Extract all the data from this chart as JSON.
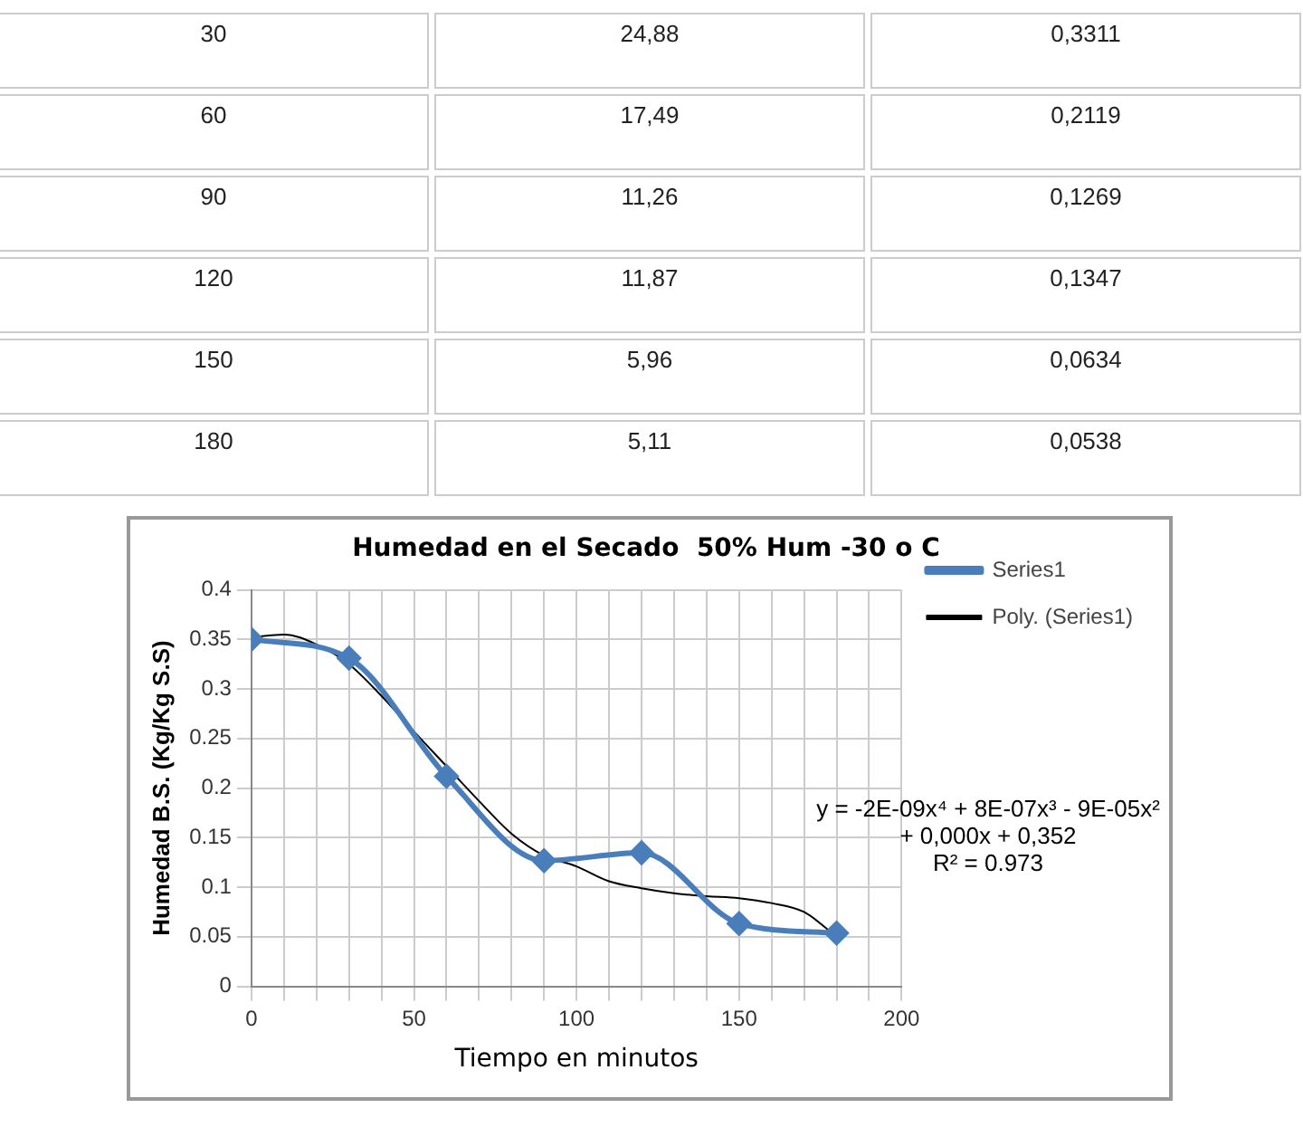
{
  "chart_data": {
    "type": "line",
    "title": "Humedad en el Secado  50% Hum -30 o C",
    "xlabel": "Tiempo en minutos",
    "ylabel": "Humedad B.S. (Kg/Kg S.S)",
    "xlim": [
      0,
      200
    ],
    "xticks": [
      0,
      {
        "value": 10,
        "label": null
      },
      {
        "value": 20,
        "label": null
      },
      {
        "value": 30,
        "label": null
      },
      {
        "value": 40,
        "label": null
      },
      50,
      {
        "value": 60,
        "label": null
      },
      {
        "value": 70,
        "label": null
      },
      {
        "value": 80,
        "label": null
      },
      {
        "value": 90,
        "label": null
      },
      100,
      {
        "value": 110,
        "label": null
      },
      {
        "value": 120,
        "label": null
      },
      {
        "value": 130,
        "label": null
      },
      {
        "value": 140,
        "label": null
      },
      150,
      {
        "value": 160,
        "label": null
      },
      {
        "value": 170,
        "label": null
      },
      {
        "value": 180,
        "label": null
      },
      {
        "value": 190,
        "label": null
      },
      200
    ],
    "ylim": [
      0,
      0.4
    ],
    "yticks": [
      0,
      0.05,
      0.1,
      0.15,
      0.2,
      0.25,
      0.3,
      0.35,
      0.4
    ],
    "grid": true,
    "legend": "right",
    "series": [
      {
        "name": "Series1",
        "color": "#4a7ebb",
        "marker": "diamond",
        "x": [
          0,
          30,
          60,
          90,
          120,
          150,
          180
        ],
        "values": [
          0.35,
          0.3311,
          0.2119,
          0.1269,
          0.1347,
          0.0634,
          0.0538
        ]
      },
      {
        "name": "Poly. (Series1)",
        "color": "#000000",
        "marker": "none",
        "x": [
          0,
          10,
          20,
          30,
          40,
          50,
          60,
          70,
          80,
          90,
          100,
          110,
          120,
          130,
          140,
          150,
          160,
          170,
          180
        ],
        "values": [
          0.352,
          0.355,
          0.345,
          0.325,
          0.293,
          0.257,
          0.222,
          0.187,
          0.154,
          0.132,
          0.121,
          0.106,
          0.099,
          0.094,
          0.091,
          0.089,
          0.084,
          0.075,
          0.05
        ]
      }
    ],
    "annotations": [
      "30",
      "24,88",
      "0,3311",
      "60",
      "17,49",
      "0,2119",
      "90",
      "11,26",
      "0,1269",
      "120",
      "11,87",
      "0,1347",
      "150",
      "5,96",
      "0,0634",
      "180",
      "5,11",
      "0,0538",
      "y = -2E-09x⁴ + 8E-07x³ - 9E-05x² + 0,000x + 0,352",
      "R² = 0.973"
    ]
  }
}
